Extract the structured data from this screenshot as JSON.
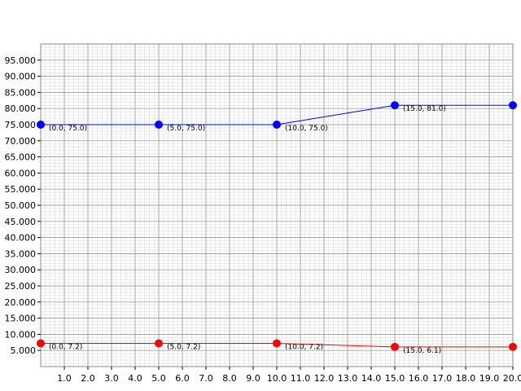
{
  "chart_data": {
    "type": "line",
    "title": "",
    "xlabel": "",
    "ylabel": "",
    "xlim": [
      0,
      20
    ],
    "ylim": [
      0,
      100
    ],
    "grid": true,
    "x_ticks": [
      "1.0",
      "2.0",
      "3.0",
      "4.0",
      "5.0",
      "6.0",
      "7.0",
      "8.0",
      "9.0",
      "10.0",
      "11.0",
      "12.0",
      "13.0",
      "14.0",
      "15.0",
      "16.0",
      "17.0",
      "18.0",
      "19.0",
      "20.0"
    ],
    "y_ticks": [
      "5.000",
      "10.000",
      "15.000",
      "20.000",
      "25.000",
      "30.000",
      "35.000",
      "40.000",
      "45.000",
      "50.000",
      "55.000",
      "60.000",
      "65.000",
      "70.000",
      "75.000",
      "80.000",
      "85.000",
      "90.000",
      "95.000"
    ],
    "series": [
      {
        "color": "#0000ff",
        "x": [
          0,
          5,
          10,
          15,
          20
        ],
        "y": [
          75,
          75,
          75,
          81,
          81
        ],
        "labels": [
          "(0.0, 75.0)",
          "(5.0, 75.0)",
          "(10.0, 75.0)",
          "(15.0, 81.0)",
          ""
        ]
      },
      {
        "color": "#ff0000",
        "x": [
          0,
          5,
          10,
          15,
          20
        ],
        "y": [
          7.2,
          7.2,
          7.2,
          6.1,
          6.1
        ],
        "labels": [
          "(0.0, 7.2)",
          "(5.0, 7.2)",
          "(10.0, 7.2)",
          "(15.0, 6.1)",
          ""
        ]
      }
    ]
  }
}
